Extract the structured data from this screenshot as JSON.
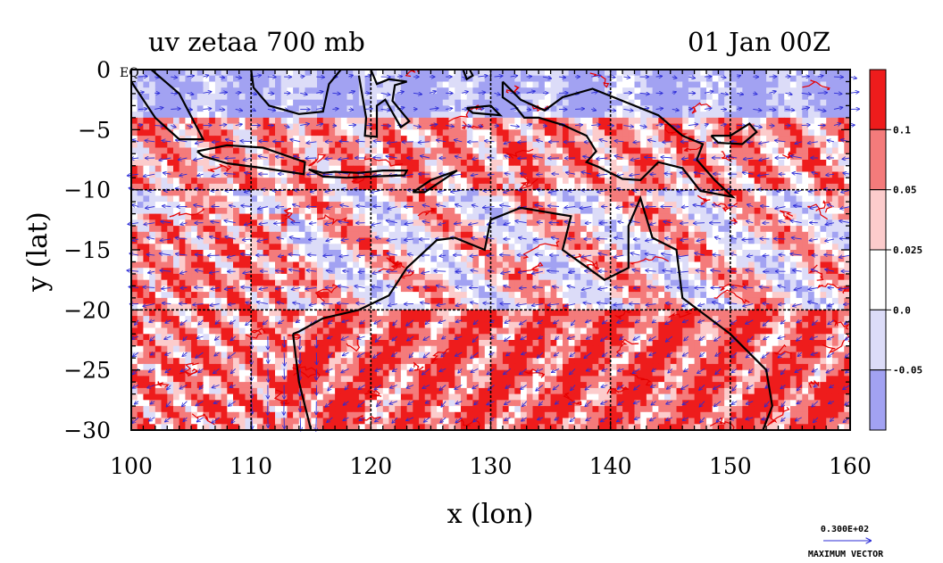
{
  "chart_data": {
    "type": "heatmap",
    "title": "uv zetaa 700 mb",
    "time_label": "01 Jan 00Z",
    "xlabel": "x (lon)",
    "ylabel": "y (lat)",
    "xlim": [
      100,
      160
    ],
    "ylim": [
      -30,
      0
    ],
    "x_ticks": [
      100,
      110,
      120,
      130,
      140,
      150,
      160
    ],
    "y_ticks": [
      0,
      -5,
      -10,
      -15,
      -20,
      -25,
      -30
    ],
    "x_tick_labels": [
      "100",
      "110",
      "120",
      "130",
      "140",
      "150",
      "160"
    ],
    "y_tick_labels": [
      "0",
      "−5",
      "−10",
      "−15",
      "−20",
      "−25",
      "−30"
    ],
    "corner_label": "EQ",
    "grid": true,
    "grid_lines_x": [
      110,
      120,
      130,
      140,
      150
    ],
    "grid_lines_y": [
      -10,
      -20
    ],
    "colorbar": {
      "levels": [
        -0.05,
        0.0,
        0.025,
        0.05,
        0.1
      ],
      "tick_labels": [
        "-0.05",
        "0.0",
        "0.025",
        "0.05",
        "0.1"
      ],
      "colors": [
        "#a2a2f2",
        "#dcdcf8",
        "#ffffff",
        "#fccccc",
        "#f47b7b",
        "#ee1c1c"
      ]
    },
    "reference_vector": {
      "value_label": "0.300E+02",
      "caption": "MAXIMUM VECTOR"
    },
    "zonal_bands": [
      {
        "lat_range": [
          -4,
          0
        ],
        "dominant": "negative"
      },
      {
        "lat_range": [
          -10,
          -4
        ],
        "dominant": "positive"
      },
      {
        "lat_range": [
          -20,
          -10
        ],
        "dominant": "mixed"
      },
      {
        "lat_range": [
          -30,
          -20
        ],
        "dominant": "strong positive"
      }
    ],
    "vector_field": "wind vectors (u, v) at 700 mb"
  }
}
